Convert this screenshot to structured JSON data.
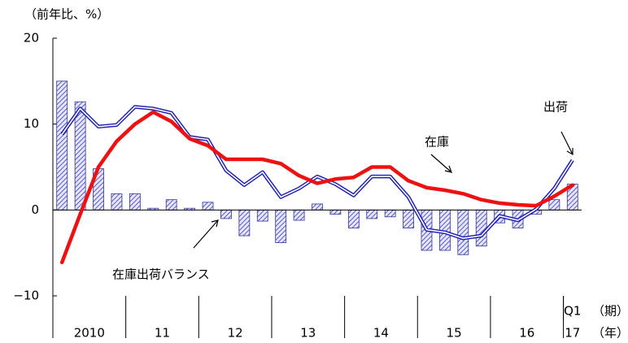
{
  "chart_data": {
    "type": "bar-line",
    "y_unit": "（前年比、%）",
    "quarter_unit": "（期）",
    "year_unit": "（年）",
    "categories": [
      null,
      null,
      null,
      null,
      null,
      null,
      null,
      null,
      null,
      null,
      null,
      null,
      null,
      null,
      null,
      null,
      null,
      null,
      null,
      null,
      null,
      null,
      null,
      null,
      null,
      null,
      null,
      null,
      "Q1"
    ],
    "year_labels": [
      "2010",
      null,
      null,
      null,
      "11",
      null,
      null,
      null,
      "12",
      null,
      null,
      null,
      "13",
      null,
      null,
      null,
      "14",
      null,
      null,
      null,
      "15",
      null,
      null,
      null,
      "16",
      null,
      null,
      null,
      "17"
    ],
    "ylim": [
      -10,
      20
    ],
    "yticks": [
      {
        "value": -10,
        "label": "−10"
      },
      0,
      10,
      20
    ],
    "series": [
      {
        "name": "在庫出荷バランス",
        "kind": "bar",
        "color": "#5a5ad0",
        "values": [
          15,
          12.6,
          4.8,
          1.9,
          1.9,
          0.2,
          1.2,
          0.2,
          0.9,
          -1,
          -3,
          -1.3,
          -3.8,
          -1.2,
          0.7,
          -0.5,
          -2.1,
          -1,
          -0.8,
          -2.1,
          -4.7,
          -4.7,
          -5.2,
          -4.2,
          -1.5,
          -2.1,
          -0.5,
          1.2,
          3
        ]
      },
      {
        "name": "出荷",
        "kind": "double-line",
        "color": "#1f1fb4",
        "values": [
          8.8,
          11.8,
          9.7,
          9.9,
          12,
          11.8,
          11.3,
          8.5,
          8.2,
          4.6,
          2.9,
          4.4,
          1.5,
          2.5,
          3.9,
          3.0,
          1.7,
          3.9,
          3.9,
          1.5,
          -2.3,
          -2.6,
          -3.3,
          -3.0,
          -0.7,
          -1.2,
          0.1,
          2.5,
          5.8
        ]
      },
      {
        "name": "在庫",
        "kind": "line",
        "color": "#ee1111",
        "values": [
          -6.1,
          -0.5,
          5,
          8,
          10,
          11.4,
          10.3,
          8.3,
          7.5,
          5.9,
          5.9,
          5.9,
          5.4,
          4.0,
          3.1,
          3.6,
          3.8,
          5.0,
          5.0,
          3.4,
          2.6,
          2.3,
          1.9,
          1.2,
          0.8,
          0.6,
          0.5,
          1.6,
          2.9
        ]
      }
    ]
  }
}
